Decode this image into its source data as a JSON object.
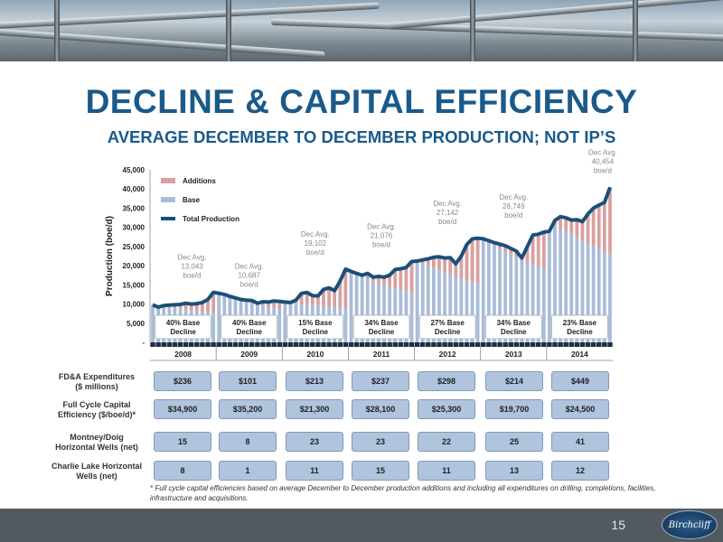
{
  "title": "DECLINE & CAPITAL EFFICIENCY",
  "subtitle": "AVERAGE DECEMBER TO DECEMBER PRODUCTION; NOT IP’S",
  "chart_data": {
    "type": "bar",
    "ylabel": "Production (boe/d)",
    "ylim": [
      0,
      45000
    ],
    "yticks": [
      "-",
      "5,000",
      "10,000",
      "15,000",
      "20,000",
      "25,000",
      "30,000",
      "35,000",
      "40,000",
      "45,000"
    ],
    "legend": [
      "Additions",
      "Base",
      "Total Production"
    ],
    "legend_position": "top-left",
    "colors": {
      "additions": "#d9a0a0",
      "base": "#a9bcd8",
      "total": "#1b4f7a"
    },
    "years": [
      "2008",
      "2009",
      "2010",
      "2011",
      "2012",
      "2013",
      "2014"
    ],
    "decline_labels": [
      [
        "40% Base",
        "Decline"
      ],
      [
        "40% Base",
        "Decline"
      ],
      [
        "15% Base",
        "Decline"
      ],
      [
        "34% Base",
        "Decline"
      ],
      [
        "27% Base",
        "Decline"
      ],
      [
        "34% Base",
        "Decline"
      ],
      [
        "23% Base",
        "Decline"
      ]
    ],
    "dec_annotations": [
      [
        "Dec Avg.",
        "13,043",
        "boe/d"
      ],
      [
        "Dec Avg.",
        "10,687",
        "boe/d"
      ],
      [
        "Dec Avg.",
        "19,102",
        "boe/d"
      ],
      [
        "Dec Avg.",
        "21,076",
        "boe/d"
      ],
      [
        "Dec Avg.",
        "27,142",
        "boe/d"
      ],
      [
        "Dec Avg.",
        "28,749",
        "boe/d"
      ],
      [
        "Dec Avg.",
        "40,454",
        "boe/d"
      ]
    ],
    "dec_values": [
      13043,
      10687,
      19102,
      21076,
      27142,
      28749,
      40454
    ],
    "total_production": [
      9800,
      9200,
      9600,
      9700,
      9800,
      9900,
      10200,
      10000,
      10100,
      10400,
      11200,
      13043,
      12800,
      12500,
      12000,
      11600,
      11200,
      11000,
      10900,
      10200,
      10600,
      10500,
      10800,
      10687,
      10500,
      10400,
      11000,
      12800,
      13000,
      12200,
      12100,
      13800,
      14200,
      13500,
      16000,
      19102,
      18500,
      18000,
      17500,
      18000,
      17000,
      17200,
      17000,
      17500,
      19000,
      19200,
      19500,
      21076,
      21200,
      21500,
      21800,
      22200,
      22300,
      22000,
      22100,
      20500,
      22500,
      25500,
      27000,
      27142,
      27000,
      26500,
      26000,
      25600,
      25200,
      24500,
      23800,
      22000,
      25000,
      28000,
      28200,
      28749,
      29000,
      31800,
      32800,
      32500,
      31900,
      32000,
      31500,
      33500,
      35000,
      35800,
      36500,
      40454
    ],
    "base_production": [
      9800,
      9500,
      9300,
      9100,
      8900,
      8700,
      8500,
      8300,
      8100,
      7900,
      7800,
      7800,
      12800,
      12300,
      11800,
      11300,
      10900,
      10500,
      10100,
      9800,
      9500,
      9200,
      8900,
      8600,
      10500,
      10300,
      10200,
      10000,
      9900,
      9800,
      9600,
      9500,
      9400,
      9300,
      9200,
      9100,
      18500,
      17900,
      17200,
      16600,
      16000,
      15500,
      15000,
      14600,
      14100,
      13700,
      13400,
      13100,
      21200,
      20600,
      20000,
      19400,
      18800,
      18200,
      17700,
      17200,
      16700,
      16200,
      15800,
      15400,
      27000,
      26200,
      25300,
      24500,
      23700,
      23000,
      22300,
      21600,
      21000,
      20400,
      19800,
      19200,
      31500,
      30600,
      29700,
      28900,
      28100,
      27300,
      26500,
      25800,
      25100,
      24400,
      23700,
      23000
    ]
  },
  "table": {
    "rows": [
      {
        "label": [
          "FD&A Expenditures",
          "($ millions)"
        ],
        "values": [
          "$236",
          "$101",
          "$213",
          "$237",
          "$298",
          "$214",
          "$449"
        ]
      },
      {
        "label": [
          "Full Cycle Capital",
          "Efficiency ($/boe/d)*"
        ],
        "values": [
          "$34,900",
          "$35,200",
          "$21,300",
          "$28,100",
          "$25,300",
          "$19,700",
          "$24,500"
        ]
      },
      {
        "label": [
          "Montney/Doig",
          "Horizontal Wells (net)"
        ],
        "values": [
          "15",
          "8",
          "23",
          "23",
          "22",
          "25",
          "41"
        ]
      },
      {
        "label": [
          "Charlie Lake Horizontal",
          "Wells (net)"
        ],
        "values": [
          "8",
          "1",
          "11",
          "15",
          "11",
          "13",
          "12"
        ]
      }
    ]
  },
  "footnote": "* Full cycle capital efficiencies based on average December to December production additions and including all expenditures on drilling, completions, facilities, infrastructure and acquisitions.",
  "page_number": "15",
  "logo_text": "Birchcliff"
}
